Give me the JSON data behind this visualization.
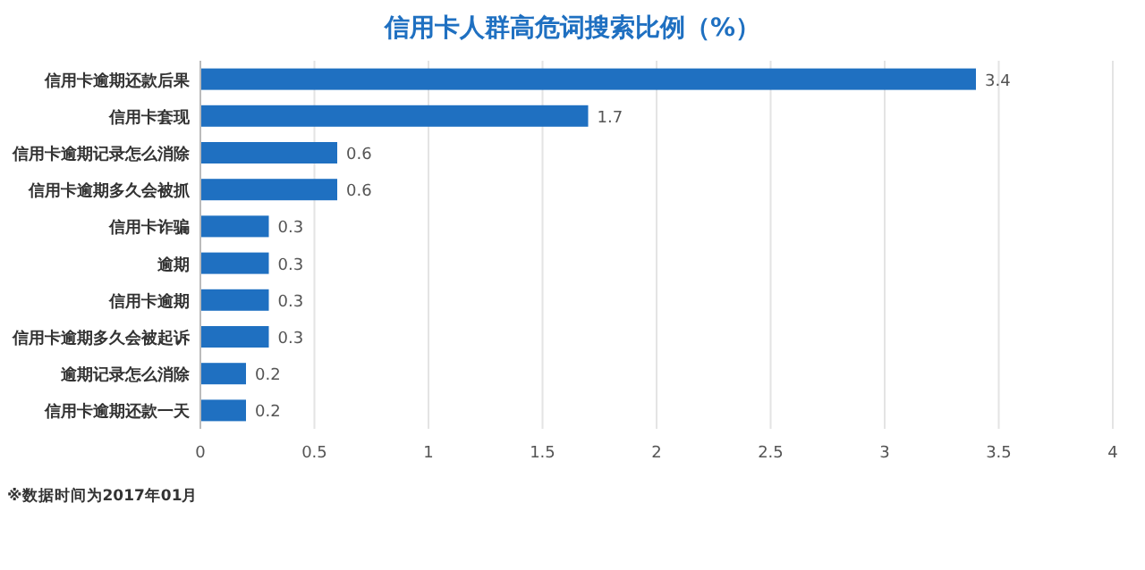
{
  "chart_data": {
    "type": "bar",
    "orientation": "horizontal",
    "title": "信用卡人群高危词搜索比例（%）",
    "categories": [
      "信用卡逾期还款后果",
      "信用卡套现",
      "信用卡逾期记录怎么消除",
      "信用卡逾期多久会被抓",
      "信用卡诈骗",
      "逾期",
      "信用卡逾期",
      "信用卡逾期多久会被起诉",
      "逾期记录怎么消除",
      "信用卡逾期还款一天"
    ],
    "values": [
      3.4,
      1.7,
      0.6,
      0.6,
      0.3,
      0.3,
      0.3,
      0.3,
      0.2,
      0.2
    ],
    "color": "#1f70c1",
    "xlim": [
      0,
      4
    ],
    "xticks": [
      0,
      0.5,
      1,
      1.5,
      2,
      2.5,
      3,
      3.5,
      4
    ],
    "grid": "x",
    "data_labels": true,
    "annotations": [
      "※数据时间为2017年01月"
    ]
  }
}
